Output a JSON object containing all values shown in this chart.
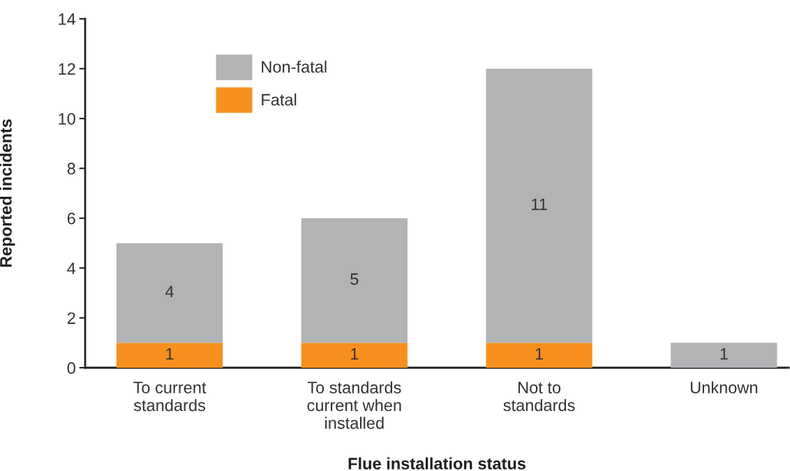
{
  "chart_data": {
    "type": "bar",
    "stacked": true,
    "xlabel": "Flue installation status",
    "ylabel": "Reported incidents",
    "categories": [
      "To current\nstandards",
      "To standards\ncurrent when\ninstalled",
      "Not to\nstandards",
      "Unknown"
    ],
    "series": [
      {
        "name": "Fatal",
        "color": "#f7901e",
        "values": [
          1,
          1,
          1,
          null
        ]
      },
      {
        "name": "Non-fatal",
        "color": "#b2b3b5",
        "values": [
          4,
          5,
          11,
          1
        ]
      }
    ],
    "ylim": [
      0,
      14
    ],
    "yticks": [
      0,
      2,
      4,
      6,
      8,
      10,
      12,
      14
    ],
    "data_labels": true,
    "legend": "top left",
    "grid": false
  }
}
